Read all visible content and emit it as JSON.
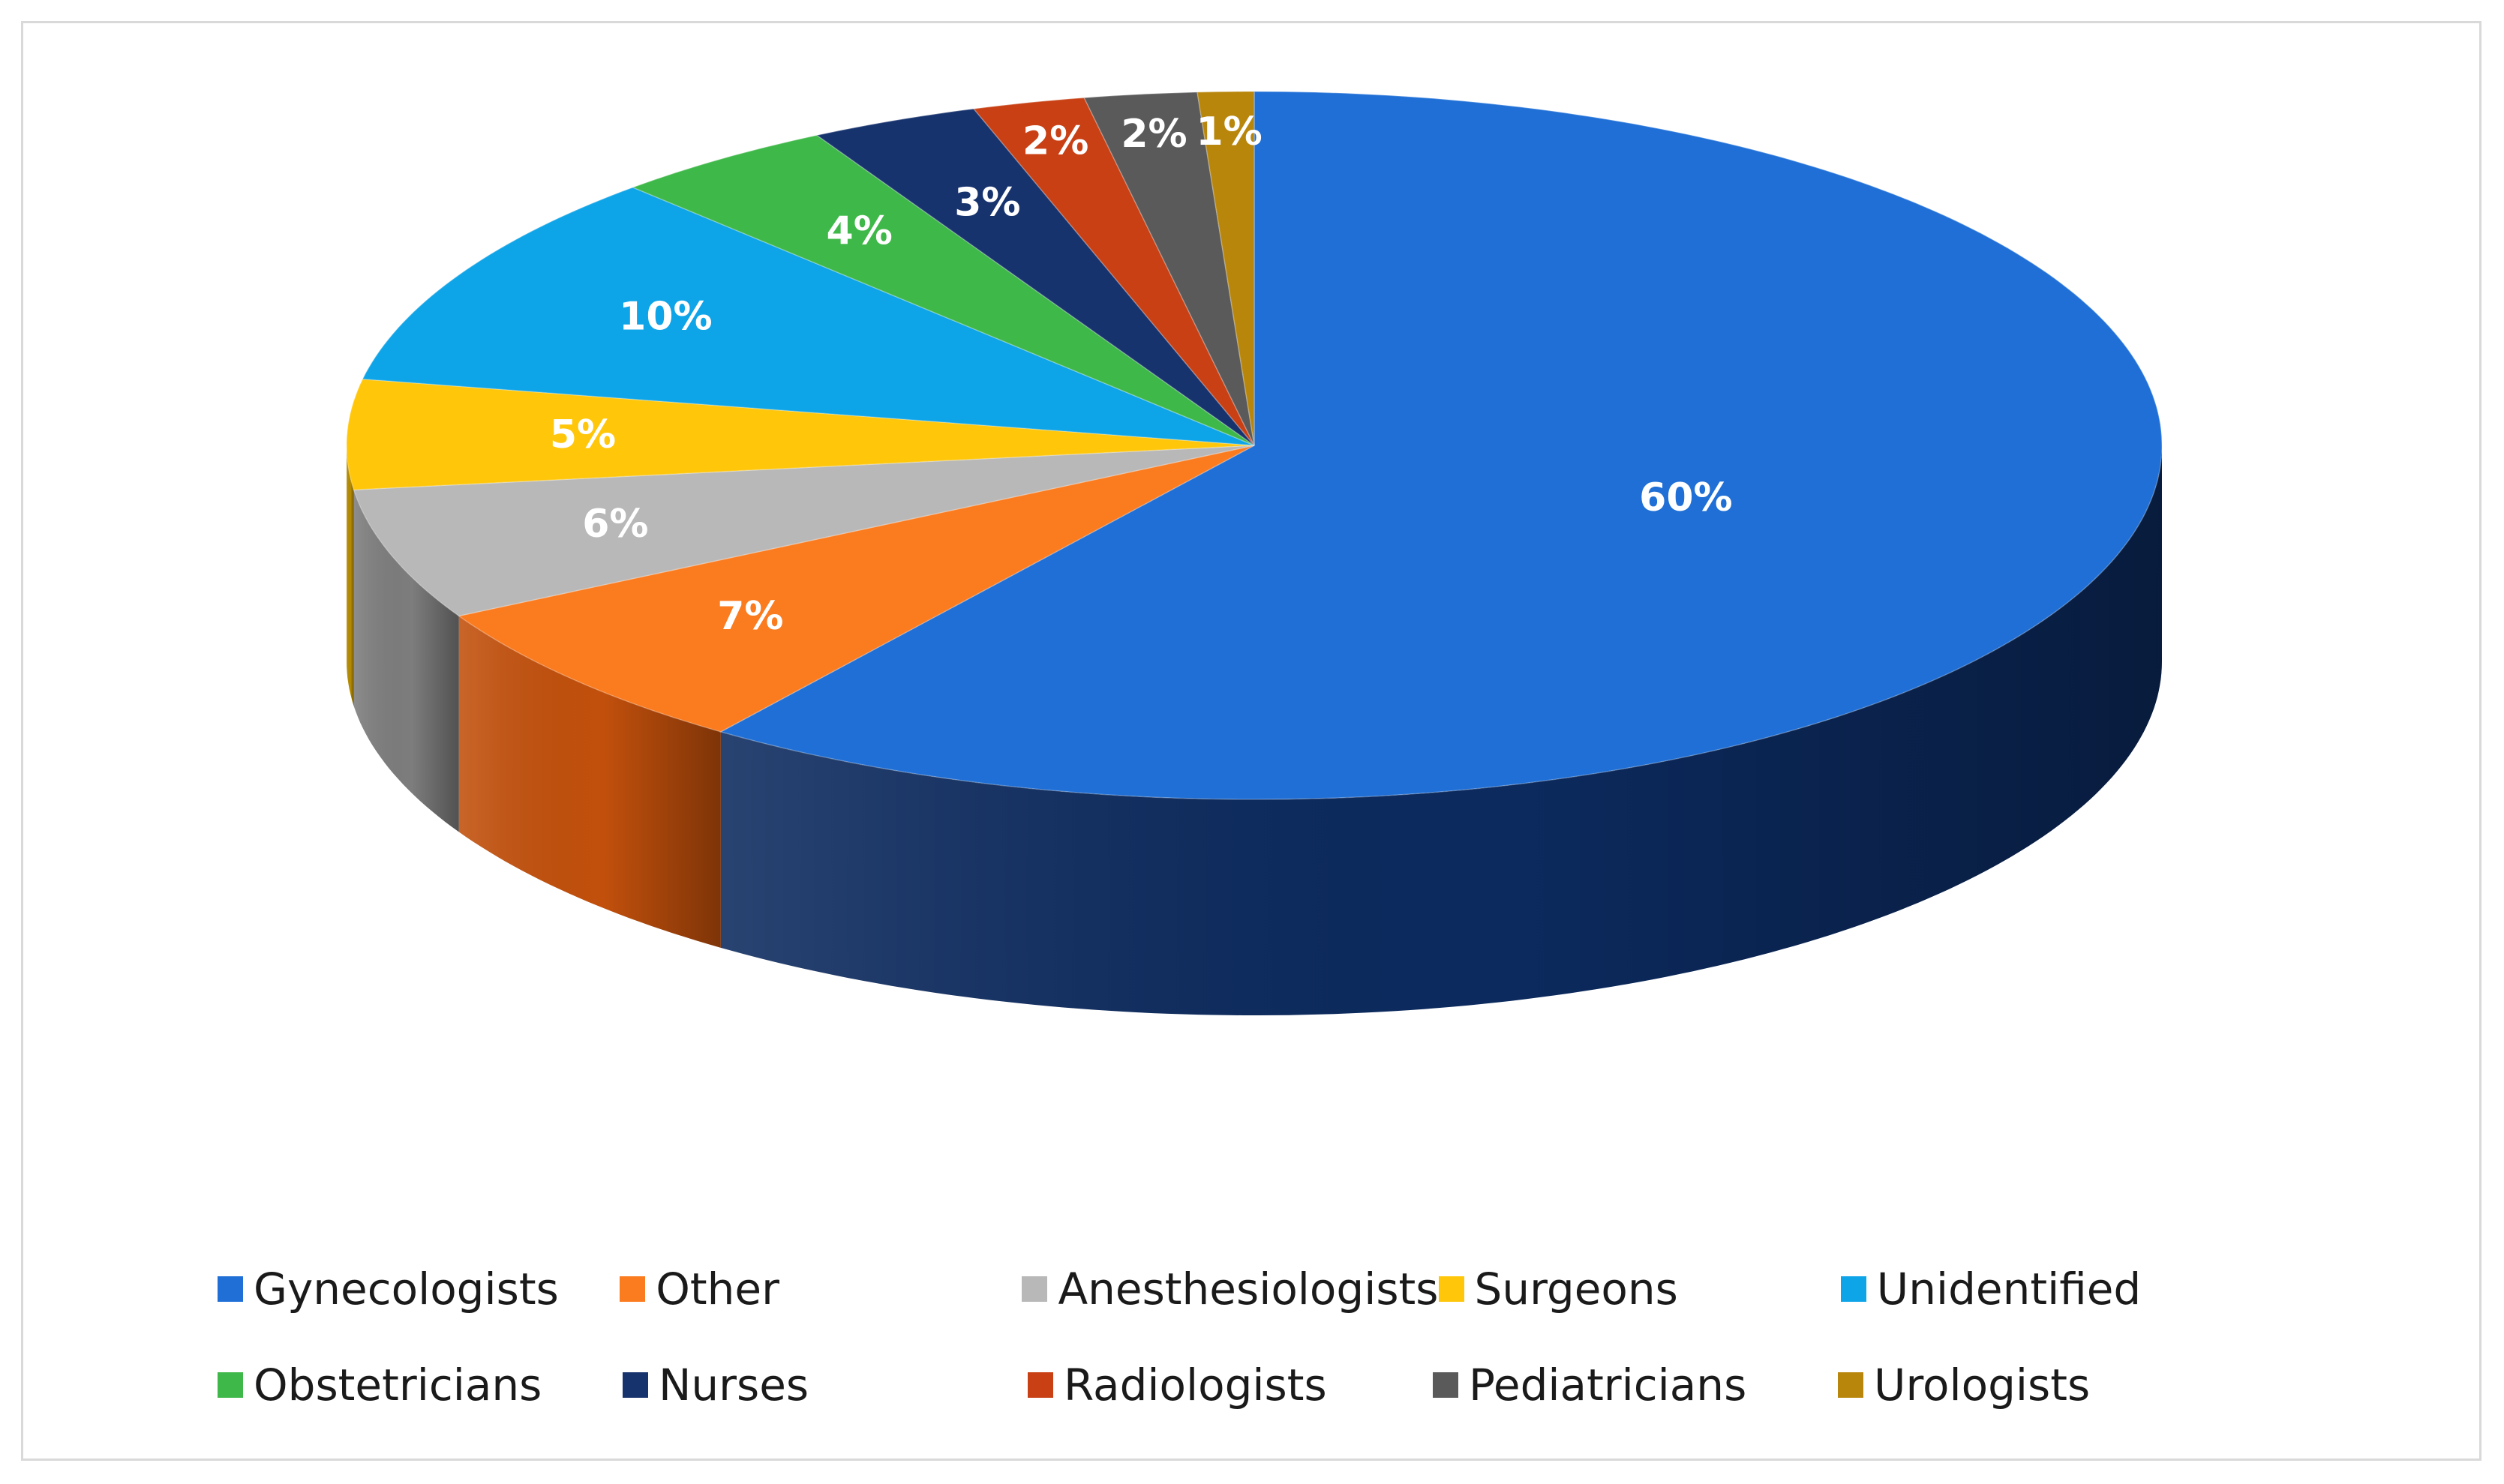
{
  "chart_data": {
    "type": "pie",
    "title": "",
    "slices": [
      {
        "name": "Gynecologists",
        "value": 60,
        "label": "60%",
        "color": "#1f6fd6",
        "side": "#0c2a5e"
      },
      {
        "name": "Other",
        "value": 7,
        "label": "7%",
        "color": "#fb7b1f",
        "side": "#c2500c"
      },
      {
        "name": "Anesthesiologists",
        "value": 6,
        "label": "6%",
        "color": "#b8b8b8",
        "side": "#7d7d7d"
      },
      {
        "name": "Surgeons",
        "value": 5,
        "label": "5%",
        "color": "#ffc60a",
        "side": "#b58b00"
      },
      {
        "name": "Unidentified",
        "value": 10,
        "label": "10%",
        "color": "#0ea4e8",
        "side": "#06699a"
      },
      {
        "name": "Obstetricians",
        "value": 4,
        "label": "4%",
        "color": "#3eb848",
        "side": "#207a2a"
      },
      {
        "name": "Nurses",
        "value": 3,
        "label": "3%",
        "color": "#17336e",
        "side": "#0a1a40"
      },
      {
        "name": "Radiologists",
        "value": 2,
        "label": "2%",
        "color": "#c84014",
        "side": "#8a2a0a"
      },
      {
        "name": "Pediatricians",
        "value": 2,
        "label": "2%",
        "color": "#5a5a5a",
        "side": "#353535"
      },
      {
        "name": "Urologists",
        "value": 1,
        "label": "1%",
        "color": "#b8860b",
        "side": "#7a5806"
      }
    ],
    "legend": {
      "placement": "bottom",
      "rows": [
        [
          "Gynecologists",
          "Other",
          "Anesthesiologists",
          "Surgeons",
          "Unidentified"
        ],
        [
          "Obstetricians",
          "Nurses",
          "Radiologists",
          "Pediatricians",
          "Urologists"
        ]
      ]
    }
  }
}
